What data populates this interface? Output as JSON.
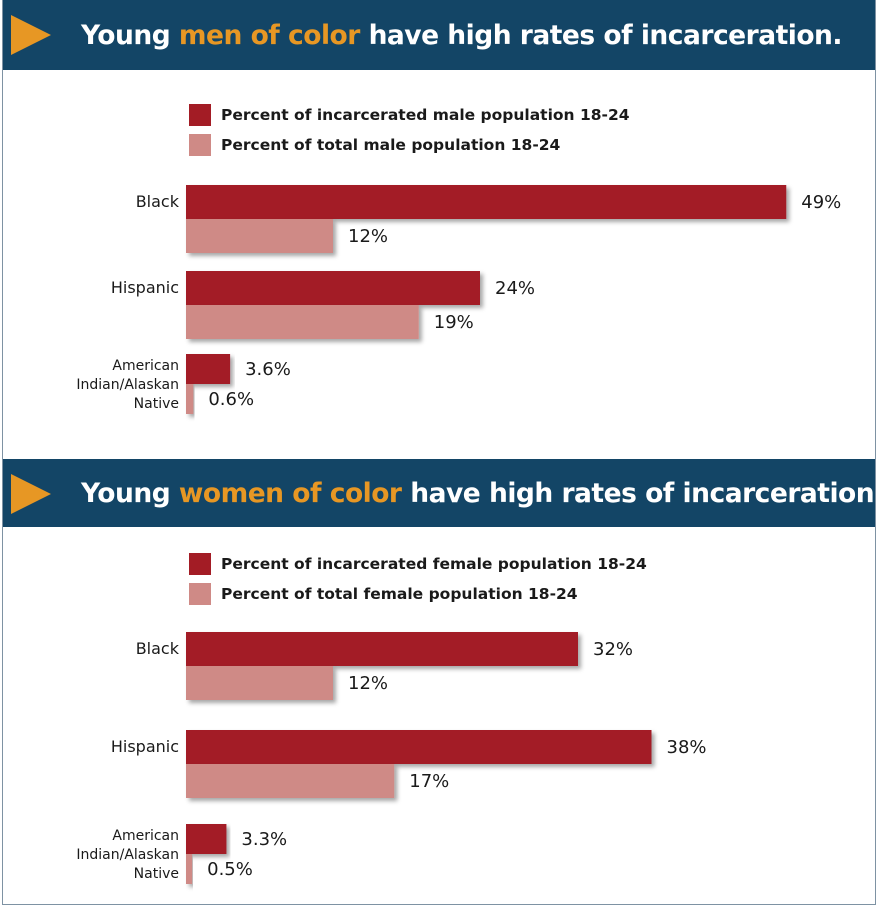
{
  "colors": {
    "banner_bg": "#134566",
    "accent": "#e79724",
    "incarcerated": "#a31c25",
    "total": "#cf8a86",
    "text": "#1a1a1a"
  },
  "panels": [
    {
      "title_prefix": "Young ",
      "title_highlight": "men of color",
      "title_suffix": " have high rates of incarceration.",
      "legend": [
        "Percent of incarcerated male population 18-24",
        "Percent of total male population 18-24"
      ]
    },
    {
      "title_prefix": "Young ",
      "title_highlight": "women of color",
      "title_suffix": " have high rates of incarceration.",
      "legend": [
        "Percent of incarcerated female population 18-24",
        "Percent of total female population 18-24"
      ]
    }
  ],
  "chart_data": [
    {
      "type": "bar",
      "orientation": "horizontal",
      "categories": [
        [
          "Black"
        ],
        [
          "Hispanic"
        ],
        [
          "American",
          "Indian/Alaskan",
          "Native"
        ]
      ],
      "series": [
        {
          "name": "Percent of incarcerated male population 18-24",
          "values": [
            49,
            24,
            3.6
          ],
          "labels": [
            "49%",
            "24%",
            "3.6%"
          ]
        },
        {
          "name": "Percent of total male population 18-24",
          "values": [
            12,
            19,
            0.6
          ],
          "labels": [
            "12%",
            "19%",
            "0.6%"
          ]
        }
      ],
      "grid": false,
      "legend_position": "top"
    },
    {
      "type": "bar",
      "orientation": "horizontal",
      "categories": [
        [
          "Black"
        ],
        [
          "Hispanic"
        ],
        [
          "American",
          "Indian/Alaskan",
          "Native"
        ]
      ],
      "series": [
        {
          "name": "Percent of incarcerated female population 18-24",
          "values": [
            32,
            38,
            3.3
          ],
          "labels": [
            "32%",
            "38%",
            "3.3%"
          ]
        },
        {
          "name": "Percent of total female population 18-24",
          "values": [
            12,
            17,
            0.5
          ],
          "labels": [
            "12%",
            "17%",
            "0.5%"
          ]
        }
      ],
      "grid": false,
      "legend_position": "top"
    }
  ]
}
